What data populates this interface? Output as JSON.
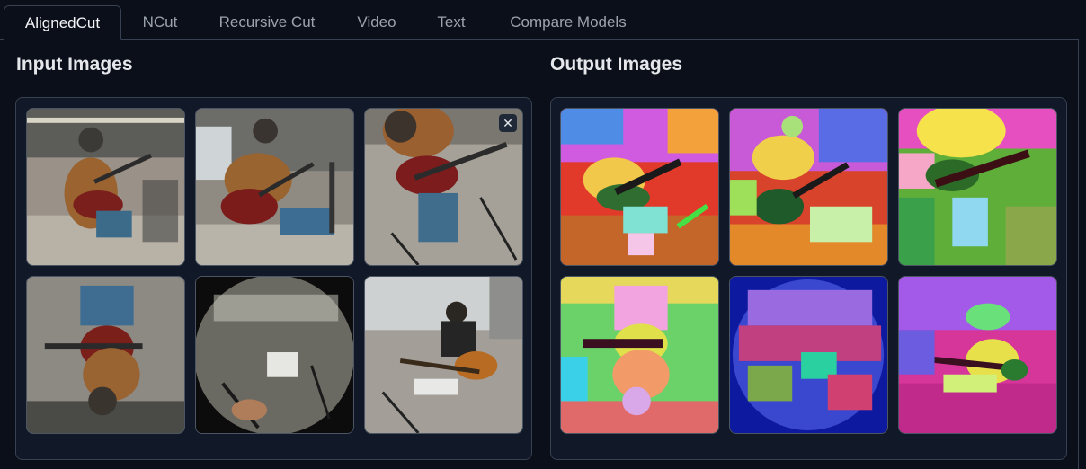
{
  "tabs": [
    {
      "label": "AlignedCut",
      "active": true
    },
    {
      "label": "NCut",
      "active": false
    },
    {
      "label": "Recursive Cut",
      "active": false
    },
    {
      "label": "Video",
      "active": false
    },
    {
      "label": "Text",
      "active": false
    },
    {
      "label": "Compare Models",
      "active": false
    }
  ],
  "input": {
    "title": "Input Images",
    "close_symbol": "✕"
  },
  "output": {
    "title": "Output Images"
  }
}
